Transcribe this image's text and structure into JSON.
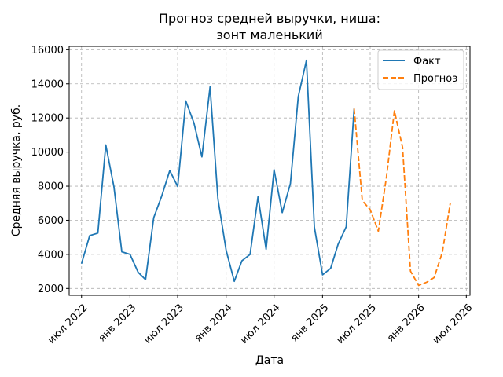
{
  "chart_data": {
    "type": "line",
    "title_lines": [
      "Прогноз средней выручки, ниша:",
      "зонт маленький"
    ],
    "xlabel": "Дата",
    "ylabel": "Средняя выручка, руб.",
    "ylim": [
      1600,
      16200
    ],
    "xlim": [
      "2022-05-15",
      "2026-07-15"
    ],
    "grid": true,
    "legend_position": "top-right",
    "x_ticks": [
      {
        "date": "2022-07-01",
        "label": "июл 2022"
      },
      {
        "date": "2023-01-01",
        "label": "янв 2023"
      },
      {
        "date": "2023-07-01",
        "label": "июл 2023"
      },
      {
        "date": "2024-01-01",
        "label": "янв 2024"
      },
      {
        "date": "2024-07-01",
        "label": "июл 2024"
      },
      {
        "date": "2025-01-01",
        "label": "янв 2025"
      },
      {
        "date": "2025-07-01",
        "label": "июл 2025"
      },
      {
        "date": "2026-01-01",
        "label": "янв 2026"
      },
      {
        "date": "2026-07-01",
        "label": "июл 2026"
      }
    ],
    "y_ticks": [
      2000,
      4000,
      6000,
      8000,
      10000,
      12000,
      14000,
      16000
    ],
    "series": [
      {
        "name": "Факт",
        "color": "#1f77b4",
        "dash": "solid",
        "points": [
          [
            "2022-07-01",
            3450
          ],
          [
            "2022-08-01",
            5100
          ],
          [
            "2022-09-01",
            5250
          ],
          [
            "2022-10-01",
            10420
          ],
          [
            "2022-11-01",
            7950
          ],
          [
            "2022-12-01",
            4150
          ],
          [
            "2023-01-01",
            4000
          ],
          [
            "2023-02-01",
            2950
          ],
          [
            "2023-03-01",
            2520
          ],
          [
            "2023-04-01",
            6150
          ],
          [
            "2023-05-01",
            7400
          ],
          [
            "2023-06-01",
            8920
          ],
          [
            "2023-07-01",
            7980
          ],
          [
            "2023-08-01",
            13000
          ],
          [
            "2023-09-01",
            11700
          ],
          [
            "2023-10-01",
            9720
          ],
          [
            "2023-11-01",
            13820
          ],
          [
            "2023-12-01",
            7250
          ],
          [
            "2024-01-01",
            4250
          ],
          [
            "2024-02-01",
            2420
          ],
          [
            "2024-03-01",
            3620
          ],
          [
            "2024-04-01",
            4000
          ],
          [
            "2024-05-01",
            7380
          ],
          [
            "2024-06-01",
            4300
          ],
          [
            "2024-07-01",
            8970
          ],
          [
            "2024-08-01",
            6450
          ],
          [
            "2024-09-01",
            8150
          ],
          [
            "2024-10-01",
            13250
          ],
          [
            "2024-11-01",
            15380
          ],
          [
            "2024-12-01",
            5600
          ],
          [
            "2025-01-01",
            2800
          ],
          [
            "2025-02-01",
            3180
          ],
          [
            "2025-03-01",
            4580
          ],
          [
            "2025-04-01",
            5620
          ],
          [
            "2025-05-01",
            12550
          ]
        ]
      },
      {
        "name": "Прогноз",
        "color": "#ff7f0e",
        "dash": "dashed",
        "points": [
          [
            "2025-05-01",
            12550
          ],
          [
            "2025-06-01",
            7150
          ],
          [
            "2025-07-01",
            6620
          ],
          [
            "2025-08-01",
            5360
          ],
          [
            "2025-09-01",
            8560
          ],
          [
            "2025-10-01",
            12420
          ],
          [
            "2025-11-01",
            10280
          ],
          [
            "2025-12-01",
            3020
          ],
          [
            "2026-01-01",
            2180
          ],
          [
            "2026-02-01",
            2370
          ],
          [
            "2026-03-01",
            2640
          ],
          [
            "2026-04-01",
            4120
          ],
          [
            "2026-05-01",
            7000
          ]
        ]
      }
    ]
  }
}
